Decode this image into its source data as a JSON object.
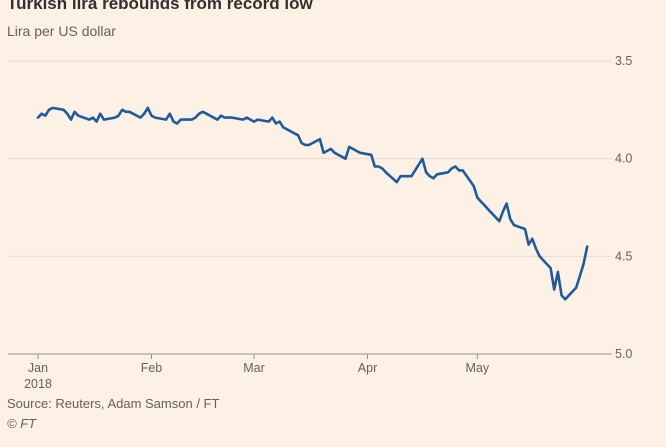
{
  "chart_data": {
    "type": "line",
    "title": "Turkish lira rebounds from record low",
    "subtitle": "Lira per US dollar",
    "source": "Source: Reuters, Adam Samson / FT",
    "credit": "© FT",
    "y_inverted": true,
    "ylim": [
      3.5,
      5.0
    ],
    "y_ticks": [
      "3.5",
      "4.0",
      "4.5",
      "5.0"
    ],
    "y_tick_values": [
      3.5,
      4.0,
      4.5,
      5.0
    ],
    "x_tick_labels": [
      "Jan",
      "Feb",
      "Mar",
      "Apr",
      "May"
    ],
    "x_tick_sublabel": "2018",
    "x_tick_dates": [
      "2018-01-01",
      "2018-02-01",
      "2018-03-01",
      "2018-04-01",
      "2018-05-01"
    ],
    "x_range": [
      "2018-01-01",
      "2018-05-31"
    ],
    "grid": true,
    "line_color": "#1f5b9a",
    "series": [
      {
        "x": [
          "2018-01-01",
          "2018-01-02",
          "2018-01-03",
          "2018-01-04",
          "2018-01-05",
          "2018-01-08",
          "2018-01-09",
          "2018-01-10",
          "2018-01-11",
          "2018-01-12",
          "2018-01-15",
          "2018-01-16",
          "2018-01-17",
          "2018-01-18",
          "2018-01-19",
          "2018-01-22",
          "2018-01-23",
          "2018-01-24",
          "2018-01-25",
          "2018-01-26",
          "2018-01-29",
          "2018-01-30",
          "2018-01-31",
          "2018-02-01",
          "2018-02-02",
          "2018-02-05",
          "2018-02-06",
          "2018-02-07",
          "2018-02-08",
          "2018-02-09",
          "2018-02-12",
          "2018-02-13",
          "2018-02-14",
          "2018-02-15",
          "2018-02-16",
          "2018-02-19",
          "2018-02-20",
          "2018-02-21",
          "2018-02-22",
          "2018-02-23",
          "2018-02-26",
          "2018-02-27",
          "2018-02-28",
          "2018-03-01",
          "2018-03-02",
          "2018-03-05",
          "2018-03-06",
          "2018-03-07",
          "2018-03-08",
          "2018-03-09",
          "2018-03-12",
          "2018-03-13",
          "2018-03-14",
          "2018-03-15",
          "2018-03-16",
          "2018-03-19",
          "2018-03-20",
          "2018-03-21",
          "2018-03-22",
          "2018-03-23",
          "2018-03-26",
          "2018-03-27",
          "2018-03-28",
          "2018-03-29",
          "2018-03-30",
          "2018-04-02",
          "2018-04-03",
          "2018-04-04",
          "2018-04-05",
          "2018-04-06",
          "2018-04-09",
          "2018-04-10",
          "2018-04-11",
          "2018-04-12",
          "2018-04-13",
          "2018-04-16",
          "2018-04-17",
          "2018-04-18",
          "2018-04-19",
          "2018-04-20",
          "2018-04-23",
          "2018-04-24",
          "2018-04-25",
          "2018-04-26",
          "2018-04-27",
          "2018-04-30",
          "2018-05-01",
          "2018-05-02",
          "2018-05-03",
          "2018-05-04",
          "2018-05-07",
          "2018-05-08",
          "2018-05-09",
          "2018-05-10",
          "2018-05-11",
          "2018-05-14",
          "2018-05-15",
          "2018-05-16",
          "2018-05-17",
          "2018-05-18",
          "2018-05-21",
          "2018-05-22",
          "2018-05-23",
          "2018-05-24",
          "2018-05-25",
          "2018-05-28",
          "2018-05-29",
          "2018-05-30",
          "2018-05-31"
        ],
        "y": [
          3.79,
          3.77,
          3.78,
          3.75,
          3.74,
          3.75,
          3.77,
          3.8,
          3.76,
          3.78,
          3.8,
          3.79,
          3.81,
          3.77,
          3.8,
          3.79,
          3.78,
          3.75,
          3.76,
          3.76,
          3.79,
          3.77,
          3.74,
          3.78,
          3.79,
          3.8,
          3.77,
          3.81,
          3.82,
          3.8,
          3.8,
          3.79,
          3.77,
          3.76,
          3.77,
          3.8,
          3.78,
          3.79,
          3.79,
          3.79,
          3.8,
          3.79,
          3.8,
          3.81,
          3.8,
          3.81,
          3.79,
          3.82,
          3.81,
          3.84,
          3.87,
          3.88,
          3.92,
          3.93,
          3.93,
          3.9,
          3.97,
          3.96,
          3.95,
          3.97,
          4.0,
          3.94,
          3.95,
          3.96,
          3.97,
          3.98,
          4.04,
          4.04,
          4.05,
          4.07,
          4.12,
          4.09,
          4.09,
          4.09,
          4.09,
          4.0,
          4.07,
          4.09,
          4.1,
          4.08,
          4.07,
          4.05,
          4.04,
          4.06,
          4.06,
          4.14,
          4.2,
          4.22,
          4.24,
          4.26,
          4.32,
          4.27,
          4.23,
          4.31,
          4.34,
          4.36,
          4.44,
          4.41,
          4.46,
          4.5,
          4.56,
          4.67,
          4.58,
          4.7,
          4.72,
          4.66,
          4.6,
          4.54,
          4.45
        ]
      }
    ]
  }
}
